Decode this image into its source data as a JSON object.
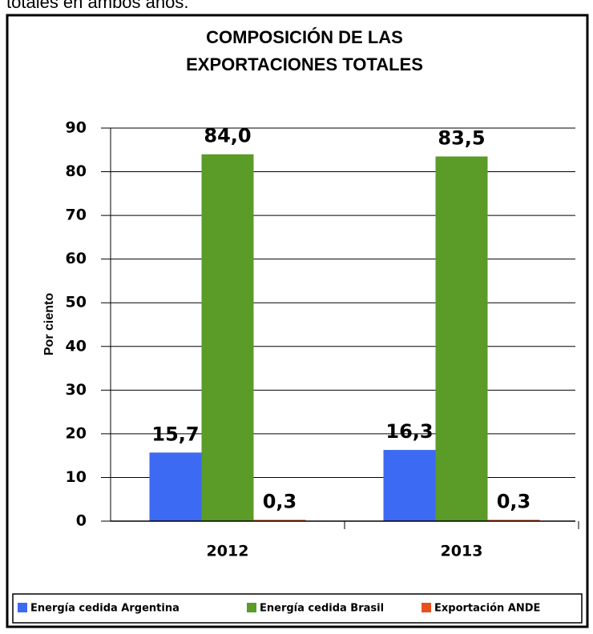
{
  "caption": "totales en ambos años.",
  "chart_data": {
    "type": "bar",
    "title": [
      "COMPOSICIÓN DE LAS",
      "EXPORTACIONES TOTALES"
    ],
    "y_label": "Por ciento",
    "categories": [
      "2012",
      "2013"
    ],
    "series": [
      {
        "name": "Energía cedida Argentina",
        "color": "#3d6af2",
        "values": [
          15.7,
          16.3
        ],
        "value_labels": [
          "15,7",
          "16,3"
        ]
      },
      {
        "name": "Energía cedida Brasil",
        "color": "#5b9b28",
        "values": [
          84.0,
          83.5
        ],
        "value_labels": [
          "84,0",
          "83,5"
        ]
      },
      {
        "name": "Exportación ANDE",
        "color": "#e8501e",
        "values": [
          0.3,
          0.3
        ],
        "value_labels": [
          "0,3",
          "0,3"
        ]
      }
    ],
    "ylim": [
      0,
      90
    ],
    "yticks": [
      0,
      10,
      20,
      30,
      40,
      50,
      60,
      70,
      80,
      90
    ],
    "grid": true,
    "legend": "bottom"
  }
}
